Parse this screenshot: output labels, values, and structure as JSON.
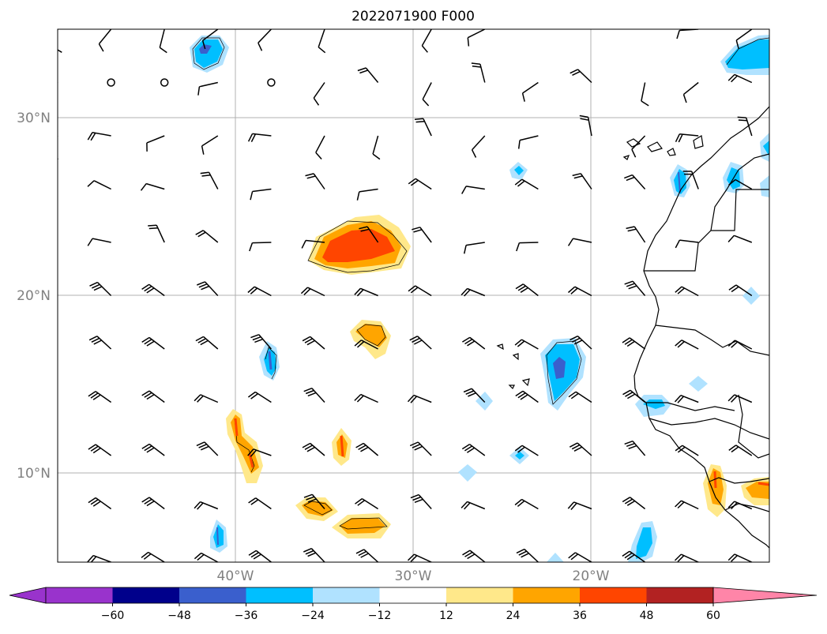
{
  "title": "2022071900 F000",
  "map": {
    "lat_labels": [
      "30°N",
      "20°N",
      "10°N"
    ],
    "lon_labels": [
      "40°W",
      "30°W",
      "20°W"
    ],
    "gridlines": true,
    "coastlines": true,
    "fields": [
      "wind barbs",
      "shaded contour anomaly"
    ]
  },
  "colorbar": {
    "ticks": [
      "−60",
      "−48",
      "−36",
      "−24",
      "−12",
      "12",
      "24",
      "36",
      "48",
      "60"
    ],
    "colors": [
      "#9933cc",
      "#00008b",
      "#3a5fcd",
      "#00bfff",
      "#b0e2ff",
      "#ffffff",
      "#ffe88a",
      "#ffa500",
      "#ff4500",
      "#b22222",
      "#ff85a8"
    ],
    "extend": "both"
  }
}
